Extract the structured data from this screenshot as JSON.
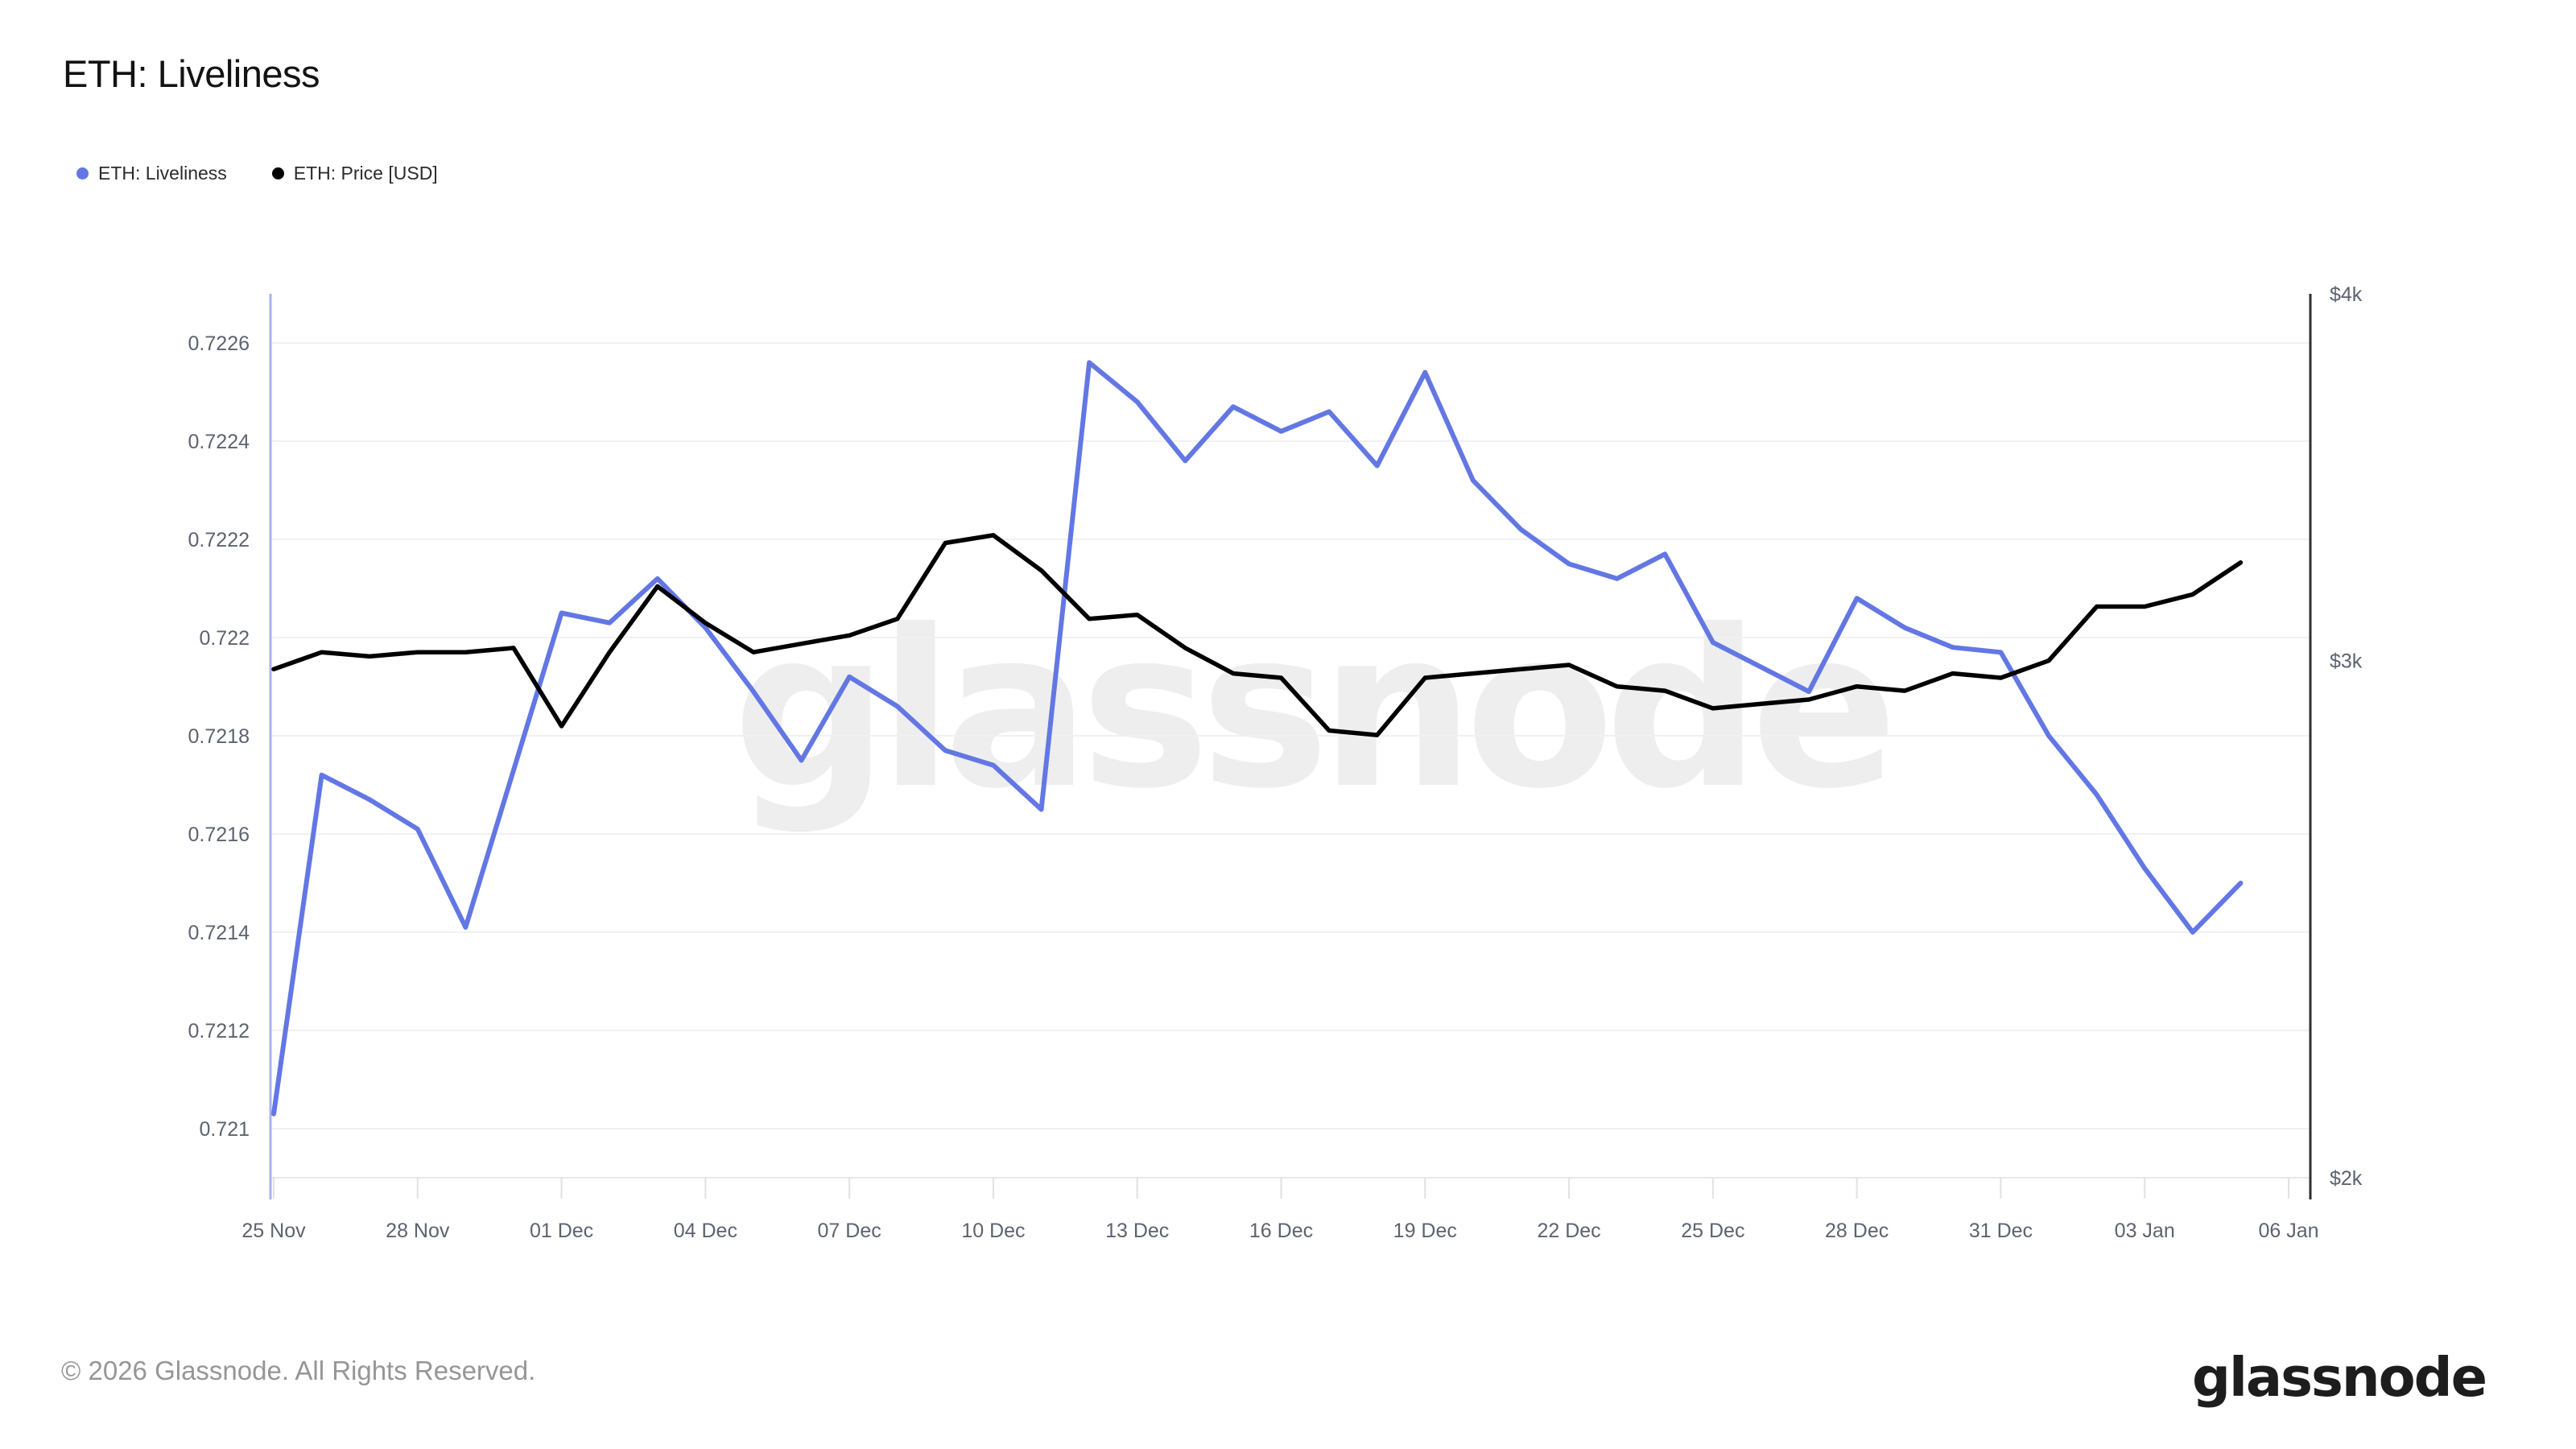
{
  "header": {
    "title": "ETH: Liveliness"
  },
  "legend": [
    {
      "label": "ETH: Liveliness",
      "color": "#6377e4"
    },
    {
      "label": "ETH: Price [USD]",
      "color": "#000000"
    }
  ],
  "watermark": "glassnode",
  "footer": {
    "copyright": "© 2026 Glassnode. All Rights Reserved.",
    "brand": "glassnode"
  },
  "chart_data": {
    "type": "line",
    "title": "ETH: Liveliness",
    "grid": "horizontal",
    "legend_position": "top-left",
    "x_tick_labels": [
      "25 Nov",
      "28 Nov",
      "01 Dec",
      "04 Dec",
      "07 Dec",
      "10 Dec",
      "13 Dec",
      "16 Dec",
      "19 Dec",
      "22 Dec",
      "25 Dec",
      "28 Dec",
      "31 Dec",
      "03 Jan",
      "06 Jan"
    ],
    "dates": [
      "25 Nov",
      "26 Nov",
      "27 Nov",
      "28 Nov",
      "29 Nov",
      "30 Nov",
      "01 Dec",
      "02 Dec",
      "03 Dec",
      "04 Dec",
      "05 Dec",
      "06 Dec",
      "07 Dec",
      "08 Dec",
      "09 Dec",
      "10 Dec",
      "11 Dec",
      "12 Dec",
      "13 Dec",
      "14 Dec",
      "15 Dec",
      "16 Dec",
      "17 Dec",
      "18 Dec",
      "19 Dec",
      "20 Dec",
      "21 Dec",
      "22 Dec",
      "23 Dec",
      "24 Dec",
      "25 Dec",
      "26 Dec",
      "27 Dec",
      "28 Dec",
      "29 Dec",
      "30 Dec",
      "31 Dec",
      "01 Jan",
      "02 Jan",
      "03 Jan",
      "04 Jan",
      "05 Jan"
    ],
    "left_axis": {
      "label_for": "ETH: Liveliness",
      "min": 0.7209,
      "max": 0.7227,
      "tick_labels": [
        "0.7226",
        "0.7224",
        "0.7222",
        "0.722",
        "0.7218",
        "0.7216",
        "0.7214",
        "0.7212",
        "0.721"
      ],
      "tick_values": [
        0.7226,
        0.7224,
        0.7222,
        0.722,
        0.7218,
        0.7216,
        0.7214,
        0.7212,
        0.721
      ]
    },
    "right_axis": {
      "label_for": "ETH: Price [USD]",
      "scale": "log",
      "min_usd": 2000,
      "max_usd": 4000,
      "tick_labels": [
        "$4k",
        "$3k",
        "$2k"
      ],
      "tick_values_usd": [
        4000,
        3000,
        2000
      ]
    },
    "series": [
      {
        "name": "ETH: Liveliness",
        "axis": "left",
        "color": "#6377e4",
        "values": [
          0.72103,
          0.72172,
          0.72167,
          0.72161,
          0.72141,
          0.72173,
          0.72205,
          0.72203,
          0.72212,
          0.72202,
          0.72189,
          0.72175,
          0.72192,
          0.72186,
          0.72177,
          0.72174,
          0.72165,
          0.72256,
          0.72248,
          0.72236,
          0.72247,
          0.72242,
          0.72246,
          0.72235,
          0.72254,
          0.72232,
          0.72222,
          0.72215,
          0.72212,
          0.72217,
          0.72199,
          0.72194,
          0.72189,
          0.72208,
          0.72202,
          0.72198,
          0.72197,
          0.7218,
          0.72168,
          0.72153,
          0.7214,
          0.7215
        ]
      },
      {
        "name": "ETH: Price [USD]",
        "axis": "right",
        "unit": "USD thousands",
        "color": "#000000",
        "values": [
          2.98,
          3.02,
          3.01,
          3.02,
          3.02,
          3.03,
          2.85,
          3.02,
          3.18,
          3.09,
          3.02,
          3.04,
          3.06,
          3.1,
          3.29,
          3.31,
          3.22,
          3.1,
          3.11,
          3.03,
          2.97,
          2.96,
          2.84,
          2.83,
          2.96,
          2.97,
          2.98,
          2.99,
          2.94,
          2.93,
          2.89,
          2.9,
          2.91,
          2.94,
          2.93,
          2.97,
          2.96,
          3.0,
          3.13,
          3.13,
          3.16,
          3.24
        ]
      }
    ]
  }
}
